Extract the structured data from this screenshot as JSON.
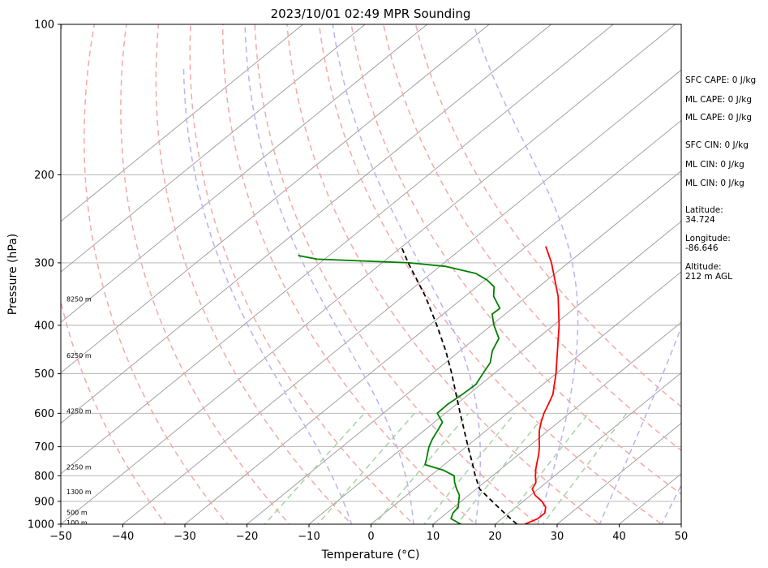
{
  "chart_data": {
    "type": "line",
    "chart_kind": "skew-t log-p sounding diagram",
    "title": "2023/10/01 02:49 MPR Sounding",
    "xlabel": "Temperature (°C)",
    "ylabel": "Pressure (hPa)",
    "xlim": [
      -50,
      50
    ],
    "ylim": [
      1000,
      100
    ],
    "y_scale": "log",
    "x_ticks": [
      "−50",
      "−40",
      "−30",
      "−20",
      "−10",
      "0",
      "10",
      "20",
      "30",
      "40",
      "50"
    ],
    "x_tick_values": [
      -50,
      -40,
      -30,
      -20,
      -10,
      0,
      10,
      20,
      30,
      40,
      50
    ],
    "y_ticks": [
      "100",
      "200",
      "300",
      "400",
      "500",
      "600",
      "700",
      "800",
      "900",
      "1000"
    ],
    "y_tick_values": [
      100,
      200,
      300,
      400,
      500,
      600,
      700,
      800,
      900,
      1000
    ],
    "grid": true,
    "background_lines": {
      "isotherms": {
        "color": "#999999",
        "style": "solid",
        "temperatures_c": [
          -110,
          -100,
          -90,
          -80,
          -70,
          -60,
          -50,
          -40,
          -30,
          -20,
          -10,
          0,
          10,
          20,
          30,
          40,
          50
        ]
      },
      "dry_adiabats": {
        "color": "#f3a9a9",
        "style": "dashed",
        "theta_k": [
          240,
          250,
          260,
          270,
          280,
          290,
          300,
          310,
          320,
          330,
          340,
          350
        ]
      },
      "moist_adiabats": {
        "color": "#b9b2f2",
        "style": "dashed",
        "theta_k": [
          270,
          280,
          290,
          300,
          310,
          320,
          330,
          340,
          350,
          360,
          370,
          380,
          390,
          400
        ]
      },
      "mixing_ratio_lines": {
        "color": "#a5d3a5",
        "style": "dashed",
        "mixing_ratio_g_kg": [
          1,
          2,
          4,
          7,
          10,
          16,
          24
        ],
        "top_pressure": 600
      }
    },
    "series": [
      {
        "color": "#ff0000",
        "style": "solid",
        "points": [
          {
            "p": 1000,
            "t": 24.8
          },
          {
            "p": 975,
            "t": 25.8
          },
          {
            "p": 950,
            "t": 25.8
          },
          {
            "p": 925,
            "t": 24.8
          },
          {
            "p": 900,
            "t": 23.0
          },
          {
            "p": 875,
            "t": 20.7
          },
          {
            "p": 850,
            "t": 19.0
          },
          {
            "p": 825,
            "t": 18.3
          },
          {
            "p": 800,
            "t": 16.9
          },
          {
            "p": 775,
            "t": 15.6
          },
          {
            "p": 750,
            "t": 14.4
          },
          {
            "p": 725,
            "t": 13.2
          },
          {
            "p": 700,
            "t": 11.8
          },
          {
            "p": 675,
            "t": 10.2
          },
          {
            "p": 650,
            "t": 8.6
          },
          {
            "p": 625,
            "t": 7.2
          },
          {
            "p": 600,
            "t": 5.9
          },
          {
            "p": 575,
            "t": 4.8
          },
          {
            "p": 550,
            "t": 3.6
          },
          {
            "p": 500,
            "t": 0.0
          },
          {
            "p": 450,
            "t": -4.3
          },
          {
            "p": 400,
            "t": -9.1
          },
          {
            "p": 350,
            "t": -15.0
          },
          {
            "p": 300,
            "t": -22.7
          },
          {
            "p": 278,
            "t": -26.9
          }
        ]
      },
      {
        "color": "#008000",
        "style": "solid",
        "points": [
          {
            "p": 1000,
            "t": 14.5
          },
          {
            "p": 975,
            "t": 11.8
          },
          {
            "p": 950,
            "t": 11.0
          },
          {
            "p": 925,
            "t": 10.7
          },
          {
            "p": 900,
            "t": 9.6
          },
          {
            "p": 875,
            "t": 8.5
          },
          {
            "p": 850,
            "t": 6.8
          },
          {
            "p": 825,
            "t": 5.2
          },
          {
            "p": 800,
            "t": 3.8
          },
          {
            "p": 780,
            "t": 1.0
          },
          {
            "p": 760,
            "t": -3.1
          },
          {
            "p": 740,
            "t": -4.0
          },
          {
            "p": 720,
            "t": -5.0
          },
          {
            "p": 700,
            "t": -6.0
          },
          {
            "p": 675,
            "t": -7.0
          },
          {
            "p": 650,
            "t": -7.8
          },
          {
            "p": 625,
            "t": -8.7
          },
          {
            "p": 600,
            "t": -11.3
          },
          {
            "p": 575,
            "t": -11.4
          },
          {
            "p": 550,
            "t": -11.0
          },
          {
            "p": 525,
            "t": -10.8
          },
          {
            "p": 500,
            "t": -11.8
          },
          {
            "p": 475,
            "t": -12.8
          },
          {
            "p": 450,
            "t": -14.8
          },
          {
            "p": 425,
            "t": -16.2
          },
          {
            "p": 400,
            "t": -19.6
          },
          {
            "p": 380,
            "t": -22.1
          },
          {
            "p": 370,
            "t": -22.0
          },
          {
            "p": 350,
            "t": -25.4
          },
          {
            "p": 335,
            "t": -27.2
          },
          {
            "p": 325,
            "t": -29.6
          },
          {
            "p": 315,
            "t": -32.8
          },
          {
            "p": 305,
            "t": -39.0
          },
          {
            "p": 300,
            "t": -45.6
          },
          {
            "p": 295,
            "t": -61.2
          },
          {
            "p": 290,
            "t": -65.0
          }
        ]
      },
      {
        "color": "#000000",
        "style": "dashed",
        "points": [
          {
            "p": 1000,
            "t": 23.5
          },
          {
            "p": 950,
            "t": 19.3
          },
          {
            "p": 900,
            "t": 15.0
          },
          {
            "p": 850,
            "t": 10.5
          },
          {
            "p": 800,
            "t": 7.2
          },
          {
            "p": 750,
            "t": 3.9
          },
          {
            "p": 700,
            "t": 0.3
          },
          {
            "p": 650,
            "t": -3.5
          },
          {
            "p": 600,
            "t": -7.6
          },
          {
            "p": 550,
            "t": -12.0
          },
          {
            "p": 500,
            "t": -16.8
          },
          {
            "p": 450,
            "t": -22.3
          },
          {
            "p": 400,
            "t": -28.8
          },
          {
            "p": 350,
            "t": -36.4
          },
          {
            "p": 300,
            "t": -45.8
          },
          {
            "p": 278,
            "t": -50.2
          }
        ]
      }
    ],
    "height_annotations": [
      {
        "label": "100 m",
        "p": 1000
      },
      {
        "label": "500 m",
        "p": 955
      },
      {
        "label": "1300 m",
        "p": 868
      },
      {
        "label": "2250 m",
        "p": 774
      },
      {
        "label": "4250 m",
        "p": 598
      },
      {
        "label": "6250 m",
        "p": 463
      },
      {
        "label": "8250 m",
        "p": 357
      }
    ]
  },
  "side_panel": {
    "sfc_cape": "SFC CAPE: 0 J/kg",
    "ml_cape_1": "ML CAPE: 0 J/kg",
    "ml_cape_2": "ML CAPE: 0 J/kg",
    "sfc_cin": "SFC CIN: 0 J/kg",
    "ml_cin_1": "ML CIN: 0 J/kg",
    "ml_cin_2": "ML CIN: 0 J/kg",
    "latitude_label": "Latitude:",
    "latitude_value": "34.724",
    "longitude_label": "Longitude:",
    "longitude_value": "-86.646",
    "altitude_label": "Altitude:",
    "altitude_value": "212 m AGL"
  }
}
